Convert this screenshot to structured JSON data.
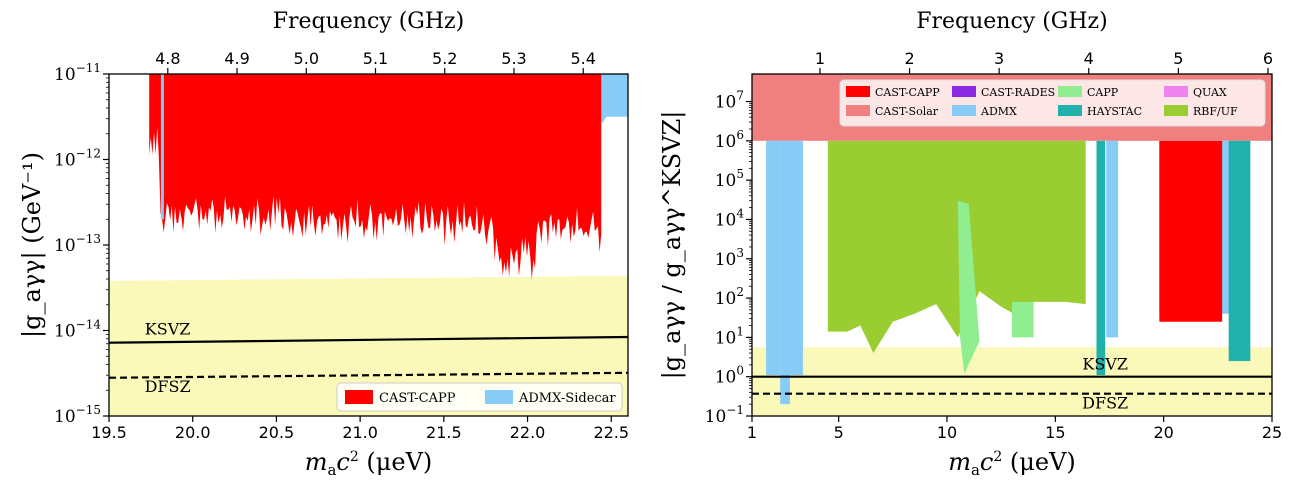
{
  "chart_data": [
    {
      "type": "area",
      "ylabel": "|g_aγγ| (GeV⁻¹)",
      "top_label": "Frequency (GHz)",
      "xlim": [
        19.5,
        22.6
      ],
      "ylim_log10": [
        -15,
        -11
      ],
      "x_scale": "linear",
      "y_scale": "log",
      "x_ticks": [
        19.5,
        20.0,
        20.5,
        21.0,
        21.5,
        22.0,
        22.5
      ],
      "x_tick_labels": [
        "19.5",
        "20.0",
        "20.5",
        "21.0",
        "21.5",
        "22.0",
        "22.5"
      ],
      "y_ticks_log10": [
        -15,
        -14,
        -13,
        -12,
        -11
      ],
      "y_tick_labels": [
        "10",
        "10",
        "10",
        "10",
        "10"
      ],
      "y_tick_exps": [
        "−15",
        "−14",
        "−13",
        "−12",
        "−11"
      ],
      "top_ticks_ghz": [
        4.8,
        4.9,
        5.0,
        5.1,
        5.2,
        5.3,
        5.4
      ],
      "top_tick_labels": [
        "4.8",
        "4.9",
        "5.0",
        "5.1",
        "5.2",
        "5.3",
        "5.4"
      ],
      "ghz_per_uev": 0.241799,
      "band": {
        "color": "#fbf9b9",
        "x": [
          19.5,
          22.6
        ],
        "lower_log10": [
          -15,
          -15
        ],
        "upper_log10": [
          -13.42,
          -13.36
        ]
      },
      "lines": [
        {
          "name": "KSVZ",
          "style": "solid",
          "x": [
            19.5,
            22.6
          ],
          "y": [
            7.2e-15,
            8.4e-15
          ]
        },
        {
          "name": "DFSZ",
          "style": "dashed",
          "x": [
            19.5,
            22.6
          ],
          "y": [
            2.8e-15,
            3.2e-15
          ]
        }
      ],
      "series": [
        {
          "name": "CAST-CAPP",
          "color": "#ff0000",
          "x_range": [
            19.74,
            22.44
          ],
          "upper": 1e-11,
          "lower_log10": -12.35
        },
        {
          "name": "ADMX-Sidecar",
          "color": "#87cbf7",
          "x_range": [
            21.05,
            22.6
          ],
          "upper": 1e-11,
          "lower_log10": -11.55
        }
      ],
      "legend": {
        "placement": "lower-right",
        "entries": [
          "CAST-CAPP",
          "ADMX-Sidecar"
        ]
      }
    },
    {
      "type": "area",
      "ylabel": "|g_aγγ / g_aγγ^KSVZ|",
      "top_label": "Frequency (GHz)",
      "xlim": [
        1,
        25
      ],
      "ylim_log10": [
        -1,
        7.7
      ],
      "x_scale": "linear",
      "y_scale": "log",
      "x_ticks": [
        1,
        5,
        10,
        15,
        20,
        25
      ],
      "x_tick_labels": [
        "1",
        "5",
        "10",
        "15",
        "20",
        "25"
      ],
      "y_ticks_log10": [
        -1,
        0,
        1,
        2,
        3,
        4,
        5,
        6,
        7
      ],
      "y_tick_labels": [
        "10",
        "10",
        "10",
        "10",
        "10",
        "10",
        "10",
        "10",
        "10"
      ],
      "y_tick_exps": [
        "−1",
        "0",
        "1",
        "2",
        "3",
        "4",
        "5",
        "6",
        "7"
      ],
      "top_ticks_ghz": [
        1,
        2,
        3,
        4,
        5,
        6
      ],
      "top_tick_labels": [
        "1",
        "2",
        "3",
        "4",
        "5",
        "6"
      ],
      "ghz_per_uev": 0.241799,
      "band": {
        "color": "#fbf9b9",
        "x": [
          1,
          25
        ],
        "lower_log10": [
          -1,
          -1
        ],
        "upper_log10": [
          0.75,
          0.75
        ]
      },
      "lines": [
        {
          "name": "KSVZ",
          "style": "solid",
          "x": [
            1,
            25
          ],
          "y": [
            1,
            1
          ]
        },
        {
          "name": "DFSZ",
          "style": "dashed",
          "x": [
            1,
            25
          ],
          "y": [
            0.37,
            0.37
          ]
        }
      ],
      "series": [
        {
          "name": "CAST-CAPP",
          "color": "#ff0000"
        },
        {
          "name": "CAST-Solar",
          "color": "#f08080"
        },
        {
          "name": "CAST-RADES",
          "color": "#8a2be2"
        },
        {
          "name": "ADMX",
          "color": "#87cbf7"
        },
        {
          "name": "CAPP",
          "color": "#90ee90"
        },
        {
          "name": "HAYSTAC",
          "color": "#20b2aa"
        },
        {
          "name": "QUAX",
          "color": "#ee82ee"
        },
        {
          "name": "RBF/UF",
          "color": "#9acd32"
        }
      ],
      "regions": [
        {
          "series": "CAST-Solar",
          "x": [
            1,
            25
          ],
          "bottom": 1000000.0,
          "top": 50000000.0
        },
        {
          "series": "ADMX",
          "x": [
            1.65,
            2.3
          ],
          "bottom": 1.1,
          "top": 1000000.0
        },
        {
          "series": "ADMX",
          "x": [
            2.3,
            2.75
          ],
          "bottom": 0.2,
          "top": 1000000.0
        },
        {
          "series": "ADMX",
          "x": [
            2.75,
            3.35
          ],
          "bottom": 1.1,
          "top": 1000000.0
        },
        {
          "series": "RBF/UF",
          "x": [
            4.5,
            16.4
          ],
          "bottom": 12,
          "top": 1000000.0
        },
        {
          "series": "CAPP",
          "x": [
            10.6,
            11.5
          ],
          "bottom": 7,
          "top": 30000.0
        },
        {
          "series": "CAPP",
          "x": [
            13.0,
            14.0
          ],
          "bottom": 10,
          "top": 80
        },
        {
          "series": "HAYSTAC",
          "x": [
            16.9,
            17.3
          ],
          "bottom": 1.1,
          "top": 1000000.0
        },
        {
          "series": "ADMX",
          "x": [
            17.35,
            17.9
          ],
          "bottom": 10,
          "top": 1000000.0
        },
        {
          "series": "ADMX",
          "x": [
            19.8,
            23.2
          ],
          "bottom": 40,
          "top": 1000000.0
        },
        {
          "series": "CAST-CAPP",
          "x": [
            19.8,
            22.7
          ],
          "bottom": 25,
          "top": 1000000.0
        },
        {
          "series": "HAYSTAC",
          "x": [
            23.0,
            24.0
          ],
          "bottom": 2.5,
          "top": 1000000.0
        }
      ],
      "legend": {
        "placement": "top",
        "entries": [
          "CAST-CAPP",
          "CAST-Solar",
          "CAST-RADES",
          "ADMX",
          "CAPP",
          "HAYSTAC",
          "QUAX",
          "RBF/UF"
        ]
      }
    }
  ]
}
